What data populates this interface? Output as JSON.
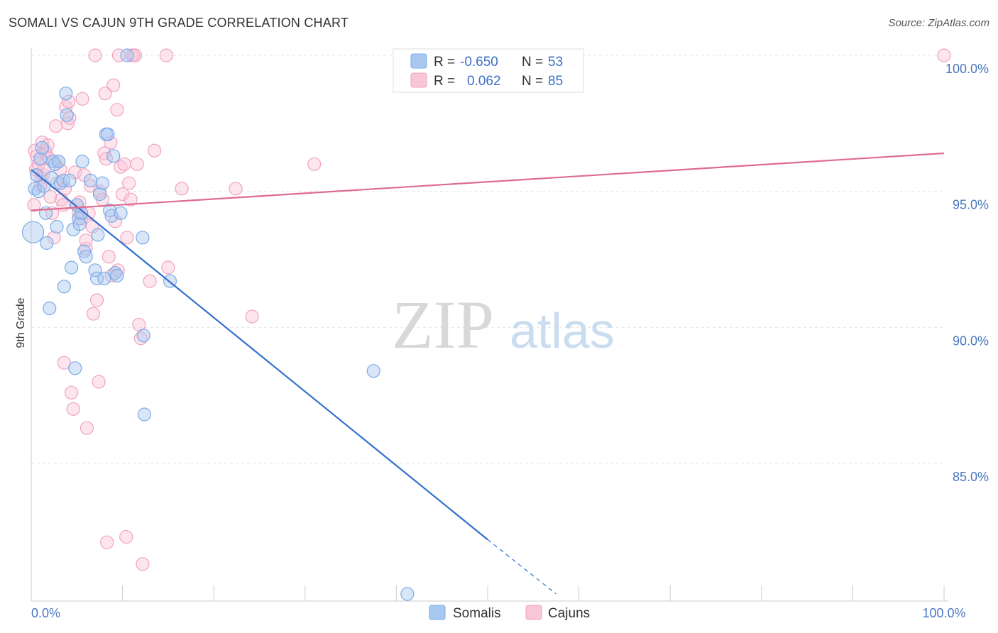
{
  "chart_data": {
    "type": "scatter",
    "title": "SOMALI VS CAJUN 9TH GRADE CORRELATION CHART",
    "source": "Source: ZipAtlas.com",
    "xlabel": "",
    "ylabel": "9th Grade",
    "xlim": [
      0,
      100
    ],
    "ylim": [
      80,
      100.8
    ],
    "x_ticks": [
      0,
      10,
      20,
      30,
      40,
      50,
      60,
      70,
      80,
      90,
      100
    ],
    "x_tick_labels": [
      {
        "value": 0,
        "label": "0.0%"
      },
      {
        "value": 100,
        "label": "100.0%"
      }
    ],
    "y_ticks": [
      {
        "value": 85,
        "label": "85.0%"
      },
      {
        "value": 90,
        "label": "90.0%"
      },
      {
        "value": 95,
        "label": "95.0%"
      },
      {
        "value": 100,
        "label": "100.0%"
      }
    ],
    "grid": true,
    "watermark": {
      "part1": "ZIP",
      "part2": "atlas"
    },
    "legend": {
      "entries": [
        {
          "r_label": "R =",
          "r_value": "-0.650",
          "n_label": "N =",
          "n_value": "53"
        },
        {
          "r_label": "R =",
          "r_value": "0.062",
          "n_label": "N =",
          "n_value": "85"
        }
      ]
    },
    "series": [
      {
        "name": "Somalis",
        "color": "#7aaae8",
        "fill": "#a9c8f0",
        "line_color": "#2f6fcf",
        "trend": {
          "x0": 0,
          "y0": 95.8,
          "x1": 50,
          "y1": 82.2,
          "dash_x1": 57.5,
          "dash_y1": 80.2
        },
        "points": [
          [
            0.2,
            93.5
          ],
          [
            0.4,
            95.1
          ],
          [
            0.6,
            95.6
          ],
          [
            0.8,
            95.0
          ],
          [
            1.0,
            96.2
          ],
          [
            1.2,
            96.6
          ],
          [
            1.4,
            95.2
          ],
          [
            1.6,
            94.2
          ],
          [
            1.7,
            93.1
          ],
          [
            2.0,
            90.7
          ],
          [
            2.2,
            95.5
          ],
          [
            2.4,
            96.1
          ],
          [
            2.6,
            96.0
          ],
          [
            2.8,
            93.7
          ],
          [
            3.0,
            96.1
          ],
          [
            3.2,
            95.3
          ],
          [
            3.5,
            95.4
          ],
          [
            3.6,
            91.5
          ],
          [
            3.8,
            98.6
          ],
          [
            3.9,
            97.8
          ],
          [
            4.2,
            95.4
          ],
          [
            4.4,
            92.2
          ],
          [
            4.6,
            93.6
          ],
          [
            4.8,
            88.5
          ],
          [
            5.0,
            94.5
          ],
          [
            5.2,
            94.0
          ],
          [
            5.3,
            93.8
          ],
          [
            5.5,
            94.2
          ],
          [
            5.6,
            96.1
          ],
          [
            5.8,
            92.8
          ],
          [
            6.0,
            92.6
          ],
          [
            6.5,
            95.4
          ],
          [
            7.0,
            92.1
          ],
          [
            7.2,
            91.8
          ],
          [
            7.3,
            93.4
          ],
          [
            7.5,
            94.9
          ],
          [
            7.8,
            95.3
          ],
          [
            8.0,
            91.8
          ],
          [
            8.2,
            97.1
          ],
          [
            8.4,
            97.1
          ],
          [
            8.6,
            94.3
          ],
          [
            8.8,
            94.1
          ],
          [
            9.0,
            96.3
          ],
          [
            9.2,
            92.0
          ],
          [
            9.4,
            91.9
          ],
          [
            9.8,
            94.2
          ],
          [
            10.5,
            100.0
          ],
          [
            12.2,
            93.3
          ],
          [
            12.3,
            89.7
          ],
          [
            12.4,
            86.8
          ],
          [
            15.2,
            91.7
          ],
          [
            37.5,
            88.4
          ],
          [
            41.2,
            80.2
          ]
        ]
      },
      {
        "name": "Cajuns",
        "color": "#f1a3bf",
        "fill": "#f8c6d7",
        "line_color": "#e06a92",
        "trend": {
          "x0": 0,
          "y0": 94.3,
          "x1": 100,
          "y1": 96.4
        },
        "points": [
          [
            0.3,
            94.5
          ],
          [
            0.4,
            96.5
          ],
          [
            0.5,
            95.8
          ],
          [
            0.6,
            96.3
          ],
          [
            0.8,
            96.0
          ],
          [
            1.0,
            95.2
          ],
          [
            1.1,
            95.5
          ],
          [
            1.2,
            96.8
          ],
          [
            1.3,
            95.6
          ],
          [
            1.4,
            95.8
          ],
          [
            1.5,
            96.5
          ],
          [
            1.6,
            96.4
          ],
          [
            1.8,
            96.7
          ],
          [
            2.0,
            96.2
          ],
          [
            2.1,
            94.8
          ],
          [
            2.3,
            94.2
          ],
          [
            2.5,
            93.3
          ],
          [
            2.7,
            97.4
          ],
          [
            2.8,
            95.3
          ],
          [
            3.0,
            96.1
          ],
          [
            3.2,
            95.8
          ],
          [
            3.3,
            94.7
          ],
          [
            3.5,
            94.5
          ],
          [
            3.6,
            88.7
          ],
          [
            3.7,
            95.1
          ],
          [
            3.8,
            98.1
          ],
          [
            4.0,
            97.5
          ],
          [
            4.1,
            98.3
          ],
          [
            4.2,
            97.7
          ],
          [
            4.4,
            87.6
          ],
          [
            4.6,
            87.0
          ],
          [
            4.8,
            95.7
          ],
          [
            5.0,
            94.5
          ],
          [
            5.2,
            94.2
          ],
          [
            5.3,
            94.6
          ],
          [
            5.5,
            94.0
          ],
          [
            5.6,
            98.4
          ],
          [
            5.8,
            95.6
          ],
          [
            6.0,
            92.9
          ],
          [
            6.0,
            93.2
          ],
          [
            6.1,
            86.3
          ],
          [
            6.3,
            94.2
          ],
          [
            6.5,
            95.2
          ],
          [
            6.7,
            93.7
          ],
          [
            6.8,
            90.5
          ],
          [
            7.0,
            100.0
          ],
          [
            7.2,
            91.0
          ],
          [
            7.4,
            88.0
          ],
          [
            7.5,
            95.0
          ],
          [
            7.8,
            94.7
          ],
          [
            8.0,
            96.4
          ],
          [
            8.1,
            98.6
          ],
          [
            8.2,
            96.2
          ],
          [
            8.3,
            82.1
          ],
          [
            8.5,
            92.6
          ],
          [
            8.7,
            96.8
          ],
          [
            8.8,
            91.9
          ],
          [
            9.0,
            98.9
          ],
          [
            9.2,
            93.9
          ],
          [
            9.4,
            98.0
          ],
          [
            9.5,
            92.1
          ],
          [
            9.6,
            100.0
          ],
          [
            9.8,
            95.9
          ],
          [
            10.0,
            94.9
          ],
          [
            10.2,
            96.0
          ],
          [
            10.4,
            82.3
          ],
          [
            10.5,
            93.3
          ],
          [
            10.7,
            95.3
          ],
          [
            10.9,
            94.7
          ],
          [
            11.0,
            100.0
          ],
          [
            11.2,
            100.0
          ],
          [
            11.4,
            100.0
          ],
          [
            11.6,
            96.0
          ],
          [
            11.8,
            90.1
          ],
          [
            12.0,
            89.6
          ],
          [
            12.2,
            81.3
          ],
          [
            13.0,
            91.7
          ],
          [
            13.5,
            96.5
          ],
          [
            14.8,
            100.0
          ],
          [
            15.0,
            92.2
          ],
          [
            16.5,
            95.1
          ],
          [
            22.4,
            95.1
          ],
          [
            24.2,
            90.4
          ],
          [
            31.0,
            96.0
          ],
          [
            100.0,
            100.0
          ]
        ]
      }
    ]
  }
}
